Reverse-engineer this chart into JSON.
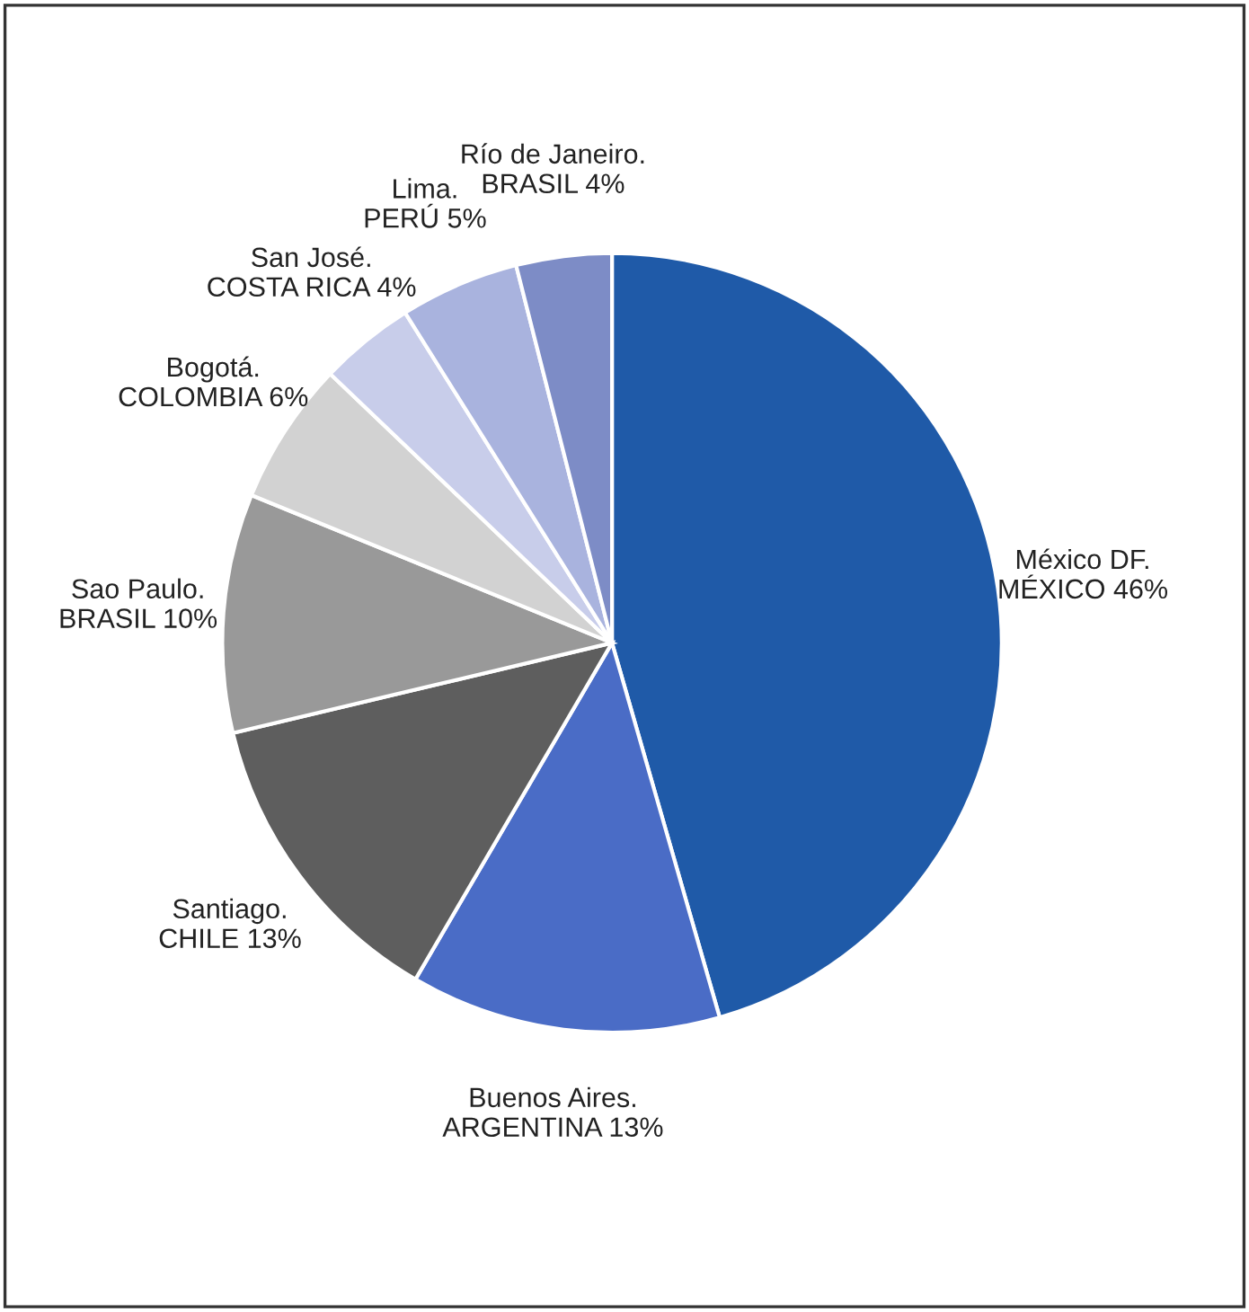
{
  "chart_data": {
    "type": "pie",
    "categories": [
      "México DF.\nMÉXICO",
      "Buenos Aires.\nARGENTINA",
      "Santiago.\nCHILE",
      "Sao Paulo.\nBRASIL",
      "Bogotá.\nCOLOMBIA",
      "San José.\nCOSTA RICA",
      "Lima.\nPERÚ",
      "Río de Janeiro.\nBRASIL"
    ],
    "values": [
      46,
      13,
      13,
      10,
      6,
      4,
      5,
      4
    ],
    "value_labels": [
      "46%",
      "13%",
      "13%",
      "10%",
      "6%",
      "4%",
      "5%",
      "4%"
    ],
    "colors": [
      "#1f5aa8",
      "#4a6cc6",
      "#5e5e5e",
      "#999999",
      "#d2d2d2",
      "#c8cdea",
      "#a9b3de",
      "#7d8cc6"
    ],
    "legend": false
  }
}
